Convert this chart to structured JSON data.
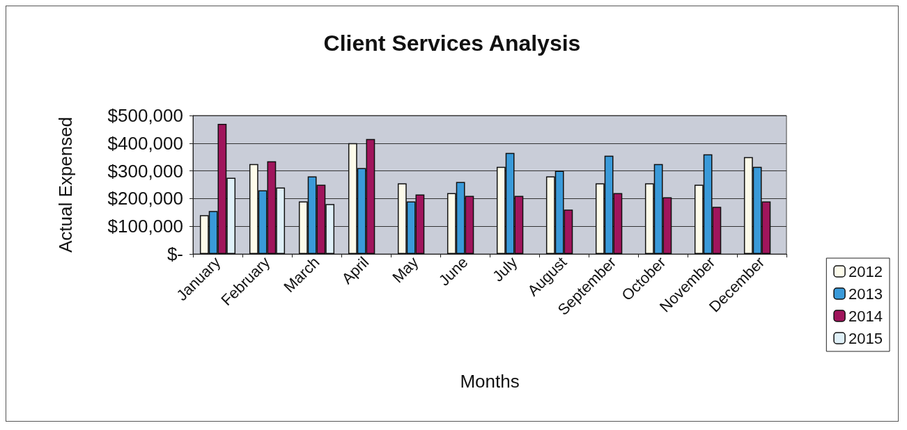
{
  "chart_data": {
    "type": "bar",
    "title": "Client Services Analysis",
    "xlabel": "Months",
    "ylabel": "Actual Expensed",
    "categories": [
      "January",
      "February",
      "March",
      "April",
      "May",
      "June",
      "July",
      "August",
      "September",
      "October",
      "November",
      "December"
    ],
    "series": [
      {
        "name": "2012",
        "color": "#fdfbea",
        "values": [
          140000,
          325000,
          190000,
          400000,
          255000,
          220000,
          315000,
          280000,
          255000,
          255000,
          250000,
          350000
        ]
      },
      {
        "name": "2013",
        "color": "#3a9ad9",
        "values": [
          155000,
          230000,
          280000,
          310000,
          190000,
          260000,
          365000,
          300000,
          355000,
          325000,
          360000,
          315000
        ]
      },
      {
        "name": "2014",
        "color": "#a0155c",
        "values": [
          470000,
          335000,
          250000,
          415000,
          215000,
          210000,
          210000,
          160000,
          220000,
          205000,
          170000,
          190000
        ]
      },
      {
        "name": "2015",
        "color": "#dff0f8",
        "values": [
          275000,
          240000,
          180000,
          null,
          null,
          null,
          null,
          null,
          null,
          null,
          null,
          null
        ]
      }
    ],
    "ylim": [
      0,
      500000
    ],
    "yticks": [
      {
        "value": 0,
        "label": "$-"
      },
      {
        "value": 100000,
        "label": "$100,000"
      },
      {
        "value": 200000,
        "label": "$200,000"
      },
      {
        "value": 300000,
        "label": "$300,000"
      },
      {
        "value": 400000,
        "label": "$400,000"
      },
      {
        "value": 500000,
        "label": "$500,000"
      }
    ],
    "grid": "y",
    "legend": "right"
  }
}
